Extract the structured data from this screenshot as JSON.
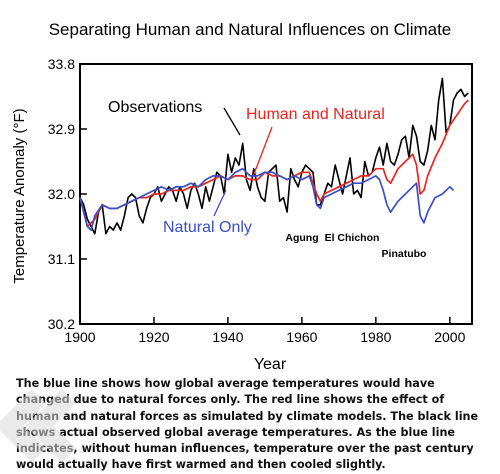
{
  "chart_data": {
    "type": "line",
    "title": "Separating Human and Natural Influences on Climate",
    "xlabel": "Year",
    "ylabel": "Temperature Anomaly (°F)",
    "xlim": [
      1900,
      2006
    ],
    "ylim": [
      30.2,
      33.8
    ],
    "xticks": [
      1900,
      1920,
      1940,
      1960,
      1980,
      2000
    ],
    "yticks": [
      30.2,
      31.1,
      32.0,
      32.9,
      33.8
    ],
    "ytick_labels": [
      "30.2",
      "31.1",
      "32.0",
      "32.9",
      "33.8"
    ],
    "grid": false,
    "series": [
      {
        "name": "Observations",
        "color": "#000000",
        "x": [
          1900,
          1901,
          1902,
          1903,
          1904,
          1905,
          1906,
          1907,
          1908,
          1909,
          1910,
          1911,
          1912,
          1913,
          1914,
          1915,
          1916,
          1917,
          1918,
          1919,
          1920,
          1921,
          1922,
          1923,
          1924,
          1925,
          1926,
          1927,
          1928,
          1929,
          1930,
          1931,
          1932,
          1933,
          1934,
          1935,
          1936,
          1937,
          1938,
          1939,
          1940,
          1941,
          1942,
          1943,
          1944,
          1945,
          1946,
          1947,
          1948,
          1949,
          1950,
          1951,
          1952,
          1953,
          1954,
          1955,
          1956,
          1957,
          1958,
          1959,
          1960,
          1961,
          1962,
          1963,
          1964,
          1965,
          1966,
          1967,
          1968,
          1969,
          1970,
          1971,
          1972,
          1973,
          1974,
          1975,
          1976,
          1977,
          1978,
          1979,
          1980,
          1981,
          1982,
          1983,
          1984,
          1985,
          1986,
          1987,
          1988,
          1989,
          1990,
          1991,
          1992,
          1993,
          1994,
          1995,
          1996,
          1997,
          1998,
          1999,
          2000,
          2001,
          2002,
          2003,
          2004,
          2005
        ],
        "values": [
          31.95,
          31.85,
          31.65,
          31.55,
          31.45,
          31.75,
          31.85,
          31.45,
          31.55,
          31.5,
          31.6,
          31.5,
          31.7,
          31.95,
          32.0,
          31.95,
          31.7,
          31.6,
          31.8,
          31.95,
          32.0,
          32.1,
          31.9,
          32.0,
          32.1,
          32.05,
          31.9,
          32.1,
          32.0,
          31.8,
          32.05,
          32.15,
          32.0,
          31.8,
          32.1,
          31.9,
          32.1,
          32.3,
          32.25,
          32.0,
          32.55,
          32.3,
          32.5,
          32.4,
          32.7,
          32.2,
          32.05,
          32.35,
          32.1,
          31.95,
          31.9,
          32.3,
          32.35,
          32.4,
          31.9,
          31.95,
          31.75,
          32.35,
          32.2,
          32.1,
          32.3,
          32.4,
          32.35,
          32.3,
          31.85,
          31.85,
          32.0,
          32.15,
          32.1,
          32.4,
          32.2,
          32.0,
          32.25,
          32.5,
          32.0,
          32.05,
          31.95,
          32.45,
          32.25,
          32.3,
          32.5,
          32.65,
          32.4,
          32.7,
          32.45,
          32.4,
          32.55,
          32.75,
          32.8,
          32.5,
          32.95,
          32.8,
          32.45,
          32.4,
          32.6,
          32.95,
          32.75,
          33.3,
          33.6,
          32.85,
          32.95,
          33.3,
          33.4,
          33.45,
          33.35,
          33.4
        ]
      },
      {
        "name": "Human and Natural",
        "color": "#e8271f",
        "x": [
          1900,
          1902,
          1904,
          1906,
          1908,
          1910,
          1912,
          1914,
          1916,
          1918,
          1920,
          1922,
          1924,
          1926,
          1928,
          1930,
          1932,
          1934,
          1936,
          1938,
          1940,
          1942,
          1944,
          1946,
          1948,
          1950,
          1952,
          1954,
          1956,
          1958,
          1960,
          1962,
          1963,
          1964,
          1965,
          1966,
          1968,
          1970,
          1972,
          1974,
          1976,
          1978,
          1980,
          1982,
          1983,
          1984,
          1986,
          1988,
          1990,
          1991,
          1992,
          1993,
          1994,
          1996,
          1998,
          2000,
          2002,
          2004,
          2005
        ],
        "values": [
          31.95,
          31.55,
          31.65,
          31.85,
          31.8,
          31.8,
          31.85,
          31.9,
          31.95,
          31.95,
          32.0,
          32.0,
          32.05,
          32.05,
          32.05,
          32.1,
          32.1,
          32.15,
          32.2,
          32.25,
          32.2,
          32.25,
          32.25,
          32.2,
          32.2,
          32.3,
          32.25,
          32.25,
          32.2,
          32.25,
          32.3,
          32.3,
          32.15,
          32.0,
          31.9,
          32.0,
          32.05,
          32.1,
          32.15,
          32.2,
          32.25,
          32.25,
          32.35,
          32.35,
          32.2,
          32.15,
          32.35,
          32.45,
          32.55,
          32.4,
          32.0,
          32.05,
          32.25,
          32.5,
          32.7,
          32.95,
          33.1,
          33.25,
          33.3
        ]
      },
      {
        "name": "Natural Only",
        "color": "#3a4fc7",
        "x": [
          1900,
          1902,
          1903,
          1904,
          1906,
          1908,
          1910,
          1912,
          1914,
          1916,
          1918,
          1920,
          1922,
          1924,
          1926,
          1928,
          1930,
          1932,
          1934,
          1936,
          1938,
          1940,
          1942,
          1944,
          1946,
          1948,
          1950,
          1952,
          1954,
          1956,
          1958,
          1960,
          1962,
          1963,
          1964,
          1965,
          1966,
          1968,
          1970,
          1972,
          1974,
          1976,
          1978,
          1980,
          1981,
          1982,
          1983,
          1984,
          1986,
          1988,
          1990,
          1991,
          1992,
          1993,
          1994,
          1996,
          1998,
          2000,
          2001
        ],
        "values": [
          31.95,
          31.55,
          31.5,
          31.7,
          31.85,
          31.8,
          31.8,
          31.85,
          31.9,
          31.95,
          32.0,
          32.05,
          32.1,
          32.05,
          32.1,
          32.1,
          32.15,
          32.1,
          32.2,
          32.25,
          32.25,
          32.2,
          32.3,
          32.35,
          32.25,
          32.25,
          32.3,
          32.3,
          32.25,
          32.2,
          32.25,
          32.2,
          32.25,
          32.1,
          31.85,
          31.8,
          31.95,
          32.0,
          32.05,
          32.1,
          32.15,
          32.15,
          32.2,
          32.25,
          32.2,
          32.05,
          31.85,
          31.75,
          31.9,
          32.0,
          32.1,
          32.15,
          31.7,
          31.6,
          31.75,
          31.95,
          32.0,
          32.1,
          32.05
        ]
      }
    ],
    "annotations": [
      {
        "text": "Agung",
        "x": 1963.5,
        "y": 31.5
      },
      {
        "text": "El Chichon",
        "x": 1982,
        "y": 31.47
      },
      {
        "text": "Pinatubo",
        "x": 1991,
        "y": 31.25
      }
    ]
  },
  "caption": "The blue line shows how global average temperatures would have changed due to natural forces only. The red line shows the effect of human and natural forces as simulated by climate models. The black line shows actual observed global average temperatures. As the blue line indicates, without human influences, temperature over the past century would actually have first warmed and then cooled slightly."
}
